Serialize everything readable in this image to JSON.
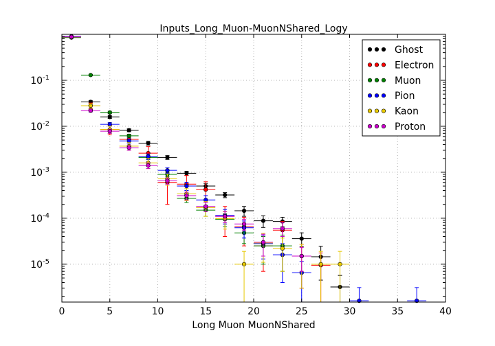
{
  "chart_data": {
    "type": "scatter",
    "title": "Inputs_Long_Muon-MuonNShared_Logy",
    "xlabel": "Long Muon MuonNShared",
    "ylabel": "",
    "xlim": [
      0,
      40
    ],
    "ylim": [
      1.5e-06,
      1.0
    ],
    "yscale": "log",
    "grid": true,
    "legend_position": "top-right",
    "x_ticks": [
      {
        "value": 0,
        "label": "0"
      },
      {
        "value": 5,
        "label": "5"
      },
      {
        "value": 10,
        "label": "10"
      },
      {
        "value": 15,
        "label": "15"
      },
      {
        "value": 20,
        "label": "20"
      },
      {
        "value": 25,
        "label": "25"
      },
      {
        "value": 30,
        "label": "30"
      },
      {
        "value": 35,
        "label": "35"
      },
      {
        "value": 40,
        "label": "40"
      }
    ],
    "y_ticks": [
      {
        "value": 1e-05,
        "base": "10",
        "exp": "-5"
      },
      {
        "value": 0.0001,
        "base": "10",
        "exp": "-4"
      },
      {
        "value": 0.001,
        "base": "10",
        "exp": "-3"
      },
      {
        "value": 0.01,
        "base": "10",
        "exp": "-2"
      },
      {
        "value": 0.1,
        "base": "10",
        "exp": "-1"
      }
    ],
    "series": [
      {
        "name": "Ghost",
        "color": "#000000",
        "x": [
          1,
          3,
          5,
          7,
          9,
          11,
          13,
          15,
          17,
          19,
          21,
          23,
          25,
          27,
          29
        ],
        "y": [
          0.9,
          0.034,
          0.016,
          0.0082,
          0.0043,
          0.0021,
          0.00095,
          0.0005,
          0.00032,
          0.000145,
          8.8e-05,
          8.5e-05,
          3.6e-05,
          1.45e-05,
          3.2e-06
        ],
        "err": [
          0.01,
          0.002,
          0.0012,
          0.0006,
          0.0004,
          0.0002,
          0.0001,
          7e-05,
          4e-05,
          3.5e-05,
          2.5e-05,
          2e-05,
          1.2e-05,
          1e-05,
          2.5e-06
        ]
      },
      {
        "name": "Electron",
        "color": "#ff0000",
        "x": [
          1,
          3,
          5,
          7,
          9,
          11,
          13,
          15,
          17,
          19,
          21,
          23,
          25,
          27
        ],
        "y": [
          0.88,
          0.028,
          0.0085,
          0.0052,
          0.0026,
          0.0006,
          0.00055,
          0.00042,
          0.00011,
          6.5e-05,
          2.5e-05,
          5.5e-05,
          1.5e-05,
          9.5e-06
        ],
        "err": [
          0.02,
          0.004,
          0.002,
          0.0015,
          0.001,
          0.0004,
          0.0003,
          0.0002,
          7e-05,
          4e-05,
          1.8e-05,
          3e-05,
          1.2e-05,
          8e-06
        ]
      },
      {
        "name": "Muon",
        "color": "#008000",
        "x": [
          1,
          3,
          5,
          7,
          9,
          11,
          13,
          15,
          17,
          19,
          21,
          23
        ],
        "y": [
          0.85,
          0.13,
          0.02,
          0.0062,
          0.0021,
          0.0009,
          0.00027,
          0.00015,
          9.5e-05,
          4.8e-05,
          2.5e-05,
          2.5e-05
        ],
        "err": [
          0.01,
          0.004,
          0.0012,
          0.0005,
          0.0002,
          0.0001,
          5e-05,
          4e-05,
          3e-05,
          2e-05,
          1.5e-05,
          1.8e-05
        ]
      },
      {
        "name": "Pion",
        "color": "#0000ff",
        "x": [
          1,
          3,
          5,
          7,
          9,
          11,
          13,
          15,
          17,
          19,
          21,
          23,
          25,
          31,
          37
        ],
        "y": [
          0.9,
          0.022,
          0.011,
          0.0048,
          0.0022,
          0.0011,
          0.0005,
          0.00025,
          0.000115,
          6.2e-05,
          2.8e-05,
          1.6e-05,
          6.5e-06,
          1.6e-06,
          1.6e-06
        ],
        "err": [
          0.01,
          0.0015,
          0.001,
          0.0005,
          0.0003,
          0.00015,
          0.0001,
          6e-05,
          4e-05,
          2.5e-05,
          1.5e-05,
          1.2e-05,
          5e-06,
          1.5e-06,
          1.5e-06
        ]
      },
      {
        "name": "Kaon",
        "color": "#e6c800",
        "x": [
          1,
          3,
          5,
          7,
          9,
          11,
          13,
          15,
          17,
          19,
          21,
          23,
          25,
          27,
          29
        ],
        "y": [
          0.88,
          0.028,
          0.0085,
          0.0037,
          0.0016,
          0.00072,
          0.00034,
          0.00017,
          9.8e-05,
          1e-05,
          2.9e-05,
          2.2e-05,
          1.5e-05,
          1e-05,
          1e-05
        ],
        "err": [
          0.02,
          0.003,
          0.0015,
          0.0007,
          0.0004,
          0.0002,
          0.0001,
          6e-05,
          4e-05,
          9e-06,
          1.8e-05,
          1.5e-05,
          1.2e-05,
          9e-06,
          9e-06
        ]
      },
      {
        "name": "Proton",
        "color": "#cc00cc",
        "x": [
          1,
          3,
          5,
          7,
          9,
          11,
          13,
          15,
          17,
          19,
          21,
          23,
          25
        ],
        "y": [
          0.88,
          0.022,
          0.0078,
          0.0034,
          0.0014,
          0.00065,
          0.00031,
          0.00018,
          0.00011,
          7.5e-05,
          3e-05,
          6e-05,
          1.5e-05
        ],
        "err": [
          0.01,
          0.0015,
          0.0008,
          0.0004,
          0.0002,
          0.0001,
          6e-05,
          4e-05,
          3e-05,
          2e-05,
          1.5e-05,
          2e-05,
          8e-06
        ]
      }
    ]
  }
}
